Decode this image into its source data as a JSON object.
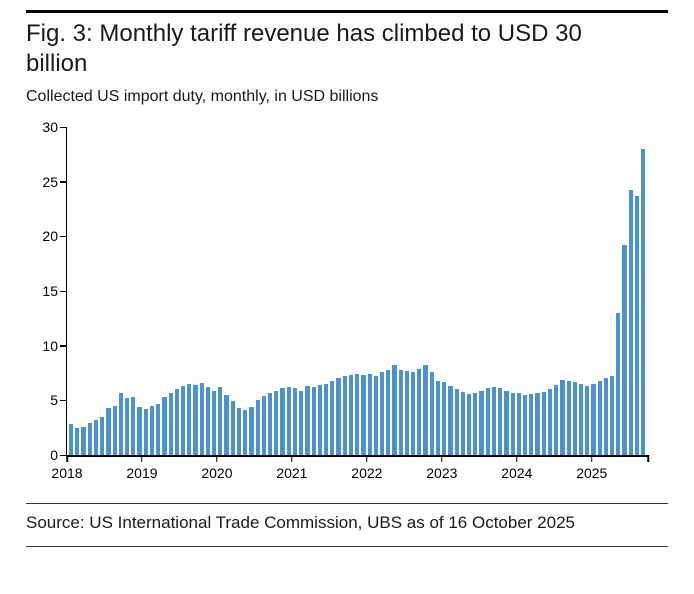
{
  "figure": {
    "title": "Fig. 3: Monthly tariff revenue has climbed to USD 30 billion",
    "subtitle": "Collected US import duty, monthly, in USD billions",
    "source": "Source: US International Trade Commission, UBS as of 16 October 2025"
  },
  "chart_data": {
    "type": "bar",
    "title": "Fig. 3: Monthly tariff revenue has climbed to USD 30 billion",
    "subtitle": "Collected US import duty, monthly, in USD billions",
    "unit": "USD billions",
    "bar_color": "#4C92CC",
    "axis_color": "#000000",
    "grid": false,
    "legend_position": "none",
    "ylim": [
      0,
      30
    ],
    "yticks": [
      0,
      5,
      10,
      15,
      20,
      25,
      30
    ],
    "x_tick_labels": [
      "2018",
      "2019",
      "2020",
      "2021",
      "2022",
      "2023",
      "2024",
      "2025"
    ],
    "values": [
      2.8,
      2.5,
      2.6,
      2.9,
      3.2,
      3.5,
      4.3,
      4.5,
      5.7,
      5.2,
      5.3,
      4.4,
      4.2,
      4.5,
      4.7,
      5.3,
      5.7,
      6.0,
      6.3,
      6.5,
      6.4,
      6.6,
      6.2,
      5.9,
      6.2,
      5.5,
      4.9,
      4.3,
      4.1,
      4.4,
      5.0,
      5.4,
      5.7,
      5.9,
      6.1,
      6.2,
      6.1,
      5.9,
      6.3,
      6.2,
      6.4,
      6.5,
      6.8,
      7.0,
      7.2,
      7.3,
      7.4,
      7.3,
      7.4,
      7.2,
      7.6,
      7.8,
      8.2,
      7.8,
      7.7,
      7.6,
      7.9,
      8.2,
      7.6,
      6.8,
      6.7,
      6.3,
      6.0,
      5.8,
      5.6,
      5.7,
      5.9,
      6.1,
      6.2,
      6.1,
      5.9,
      5.7,
      5.7,
      5.5,
      5.6,
      5.7,
      5.8,
      6.0,
      6.4,
      6.9,
      6.8,
      6.7,
      6.5,
      6.3,
      6.5,
      6.8,
      7.0,
      7.2,
      13.0,
      19.2,
      24.2,
      23.7,
      28.0
    ]
  }
}
